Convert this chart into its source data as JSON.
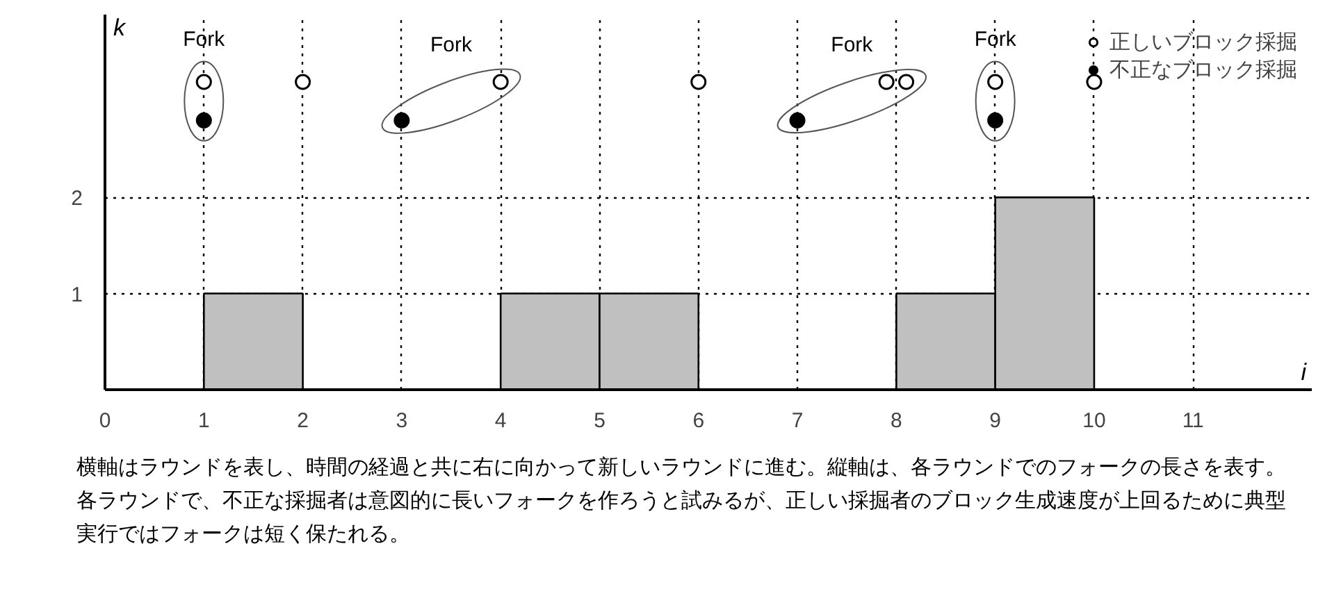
{
  "chart_data": {
    "type": "histogram",
    "xlabel": "i",
    "ylabel": "k",
    "bins": [
      0,
      1,
      2,
      3,
      4,
      5,
      6,
      7,
      8,
      9,
      10,
      11
    ],
    "values": [
      0,
      1,
      0,
      0,
      1,
      1,
      0,
      0,
      1,
      2,
      0
    ],
    "color": "#c0c0c0",
    "series": [
      {
        "type": "scatter",
        "name": "正しいブロック採掘",
        "marker": "circle",
        "color": "#ffffff",
        "x": [
          1,
          2,
          4,
          6,
          7.9,
          8.1,
          9,
          10
        ],
        "values": [
          3.2,
          3.2,
          3.2,
          3.2,
          3.2,
          3.2,
          3.2,
          3.2
        ]
      },
      {
        "type": "scatter",
        "name": "不正なブロック採掘",
        "marker": "circle",
        "color": "#000000",
        "x": [
          1,
          3,
          7,
          9
        ],
        "values": [
          2.8,
          2.8,
          2.8,
          2.8
        ]
      }
    ],
    "xlim": [
      0,
      12.2
    ],
    "ylim": [
      0,
      3.9
    ],
    "xticks": [
      0,
      1,
      2,
      3,
      4,
      5,
      6,
      7,
      8,
      9,
      10,
      11
    ],
    "yticks": [
      {
        "value": 0,
        "label": null
      },
      1,
      2
    ],
    "grid": true,
    "line_style": "dotted",
    "legend": "top right",
    "annotations": [
      "Fork",
      "Fork",
      "Fork",
      "Fork",
      "横軸はラウンドを表し、時間の経過と共に右に向かって新しいラウンドに進む。縦軸は、各ラウンドでのフォークの長さを表す。各ラウンドで、不正な採掘者は意図的に長いフォークを作ろうと試みるが、正しい採掘者のブロック生成速度が上回るために典型実行ではフォークは短く保たれる。"
    ]
  }
}
